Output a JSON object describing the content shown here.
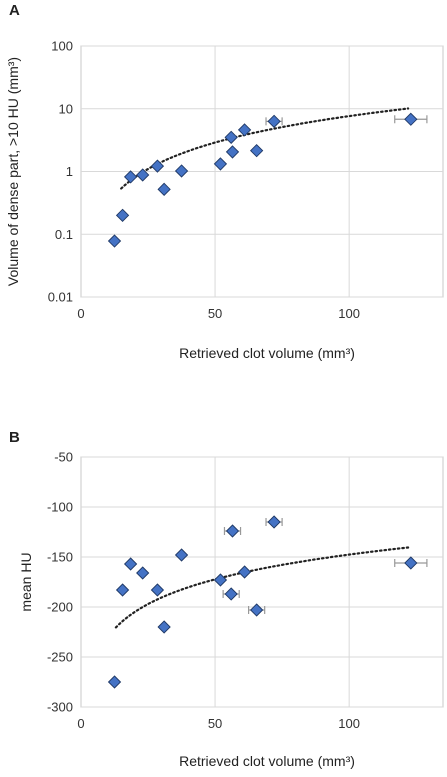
{
  "panel_labels": [
    "A",
    "B"
  ],
  "chart_data": [
    {
      "type": "scatter",
      "panel": "A",
      "xlabel": "Retrieved clot volume (mm³)",
      "ylabel": "Volume of dense part, >10 HU (mm³)",
      "xlim": [
        0,
        135
      ],
      "ylim": [
        0.01,
        100
      ],
      "yscale": "log",
      "xticks": [
        "0",
        "50",
        "100"
      ],
      "yticks": [
        "0.01",
        "0.1",
        "1",
        "10",
        "100"
      ],
      "grid": true,
      "marker": "diamond",
      "marker_color": "#4472C4",
      "trendline": {
        "style": "dotted",
        "fit": "power",
        "a": 0.0121,
        "b": 1.4,
        "x_range": [
          15,
          122
        ]
      },
      "points": [
        {
          "x": 12.5,
          "y": 0.078
        },
        {
          "x": 15.5,
          "y": 0.2
        },
        {
          "x": 18.5,
          "y": 0.82
        },
        {
          "x": 23,
          "y": 0.88
        },
        {
          "x": 28.5,
          "y": 1.22
        },
        {
          "x": 31,
          "y": 0.52
        },
        {
          "x": 37.5,
          "y": 1.02
        },
        {
          "x": 52,
          "y": 1.32
        },
        {
          "x": 56,
          "y": 3.5
        },
        {
          "x": 56.5,
          "y": 2.05
        },
        {
          "x": 61,
          "y": 4.6
        },
        {
          "x": 65.5,
          "y": 2.15
        },
        {
          "x": 72,
          "y": 6.3,
          "xerr": 3
        },
        {
          "x": 123,
          "y": 6.8,
          "xerr": 6
        }
      ]
    },
    {
      "type": "scatter",
      "panel": "B",
      "xlabel": "Retrieved clot volume (mm³)",
      "ylabel": "mean HU",
      "xlim": [
        0,
        135
      ],
      "ylim": [
        -300,
        -50
      ],
      "xticks": [
        "0",
        "50",
        "100"
      ],
      "yticks": [
        "-50",
        "-100",
        "-150",
        "-200",
        "-250",
        "-300"
      ],
      "grid": true,
      "marker": "diamond",
      "marker_color": "#4472C4",
      "trendline": {
        "style": "dotted",
        "fit": "log",
        "a": 35.7,
        "b": -312,
        "x_range": [
          13,
          122
        ]
      },
      "points": [
        {
          "x": 12.5,
          "y": -275
        },
        {
          "x": 15.5,
          "y": -183
        },
        {
          "x": 18.5,
          "y": -157
        },
        {
          "x": 23,
          "y": -166
        },
        {
          "x": 28.5,
          "y": -183
        },
        {
          "x": 31,
          "y": -220
        },
        {
          "x": 37.5,
          "y": -148
        },
        {
          "x": 52,
          "y": -173
        },
        {
          "x": 56.5,
          "y": -124,
          "xerr": 3
        },
        {
          "x": 56,
          "y": -187,
          "xerr": 3
        },
        {
          "x": 61,
          "y": -165
        },
        {
          "x": 65.5,
          "y": -203,
          "xerr": 3
        },
        {
          "x": 72,
          "y": -115,
          "xerr": 3
        },
        {
          "x": 123,
          "y": -156,
          "xerr": 6
        }
      ]
    }
  ]
}
